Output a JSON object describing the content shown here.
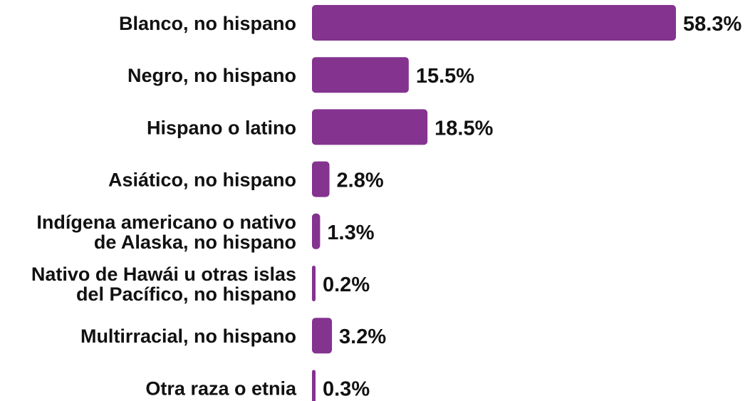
{
  "chart_data": {
    "type": "bar",
    "orientation": "horizontal",
    "categories": [
      "Blanco, no hispano",
      "Negro, no hispano",
      "Hispano o latino",
      "Asiático, no hispano",
      "Indígena americano o nativo de Alaska, no hispano",
      "Nativo de Hawái u otras islas del Pacífico, no hispano",
      "Multirracial, no hispano",
      "Otra raza o etnia"
    ],
    "category_lines": [
      [
        "Blanco, no hispano"
      ],
      [
        "Negro, no hispano"
      ],
      [
        "Hispano o latino"
      ],
      [
        "Asiático, no hispano"
      ],
      [
        "Indígena americano o nativo",
        "de Alaska, no hispano"
      ],
      [
        "Nativo de Hawái u otras islas",
        "del Pacífico, no hispano"
      ],
      [
        "Multirracial, no hispano"
      ],
      [
        "Otra raza o etnia"
      ]
    ],
    "values": [
      58.3,
      15.5,
      18.5,
      2.8,
      1.3,
      0.2,
      3.2,
      0.3
    ],
    "value_labels": [
      "58.3%",
      "15.5%",
      "18.5%",
      "2.8%",
      "1.3%",
      "0.2%",
      "3.2%",
      "0.3%"
    ],
    "unit": "%",
    "xlim": [
      0,
      58.3
    ],
    "grid": false,
    "legend": "none",
    "bar_color": "#84338F",
    "title": "",
    "xlabel": "",
    "ylabel": ""
  }
}
